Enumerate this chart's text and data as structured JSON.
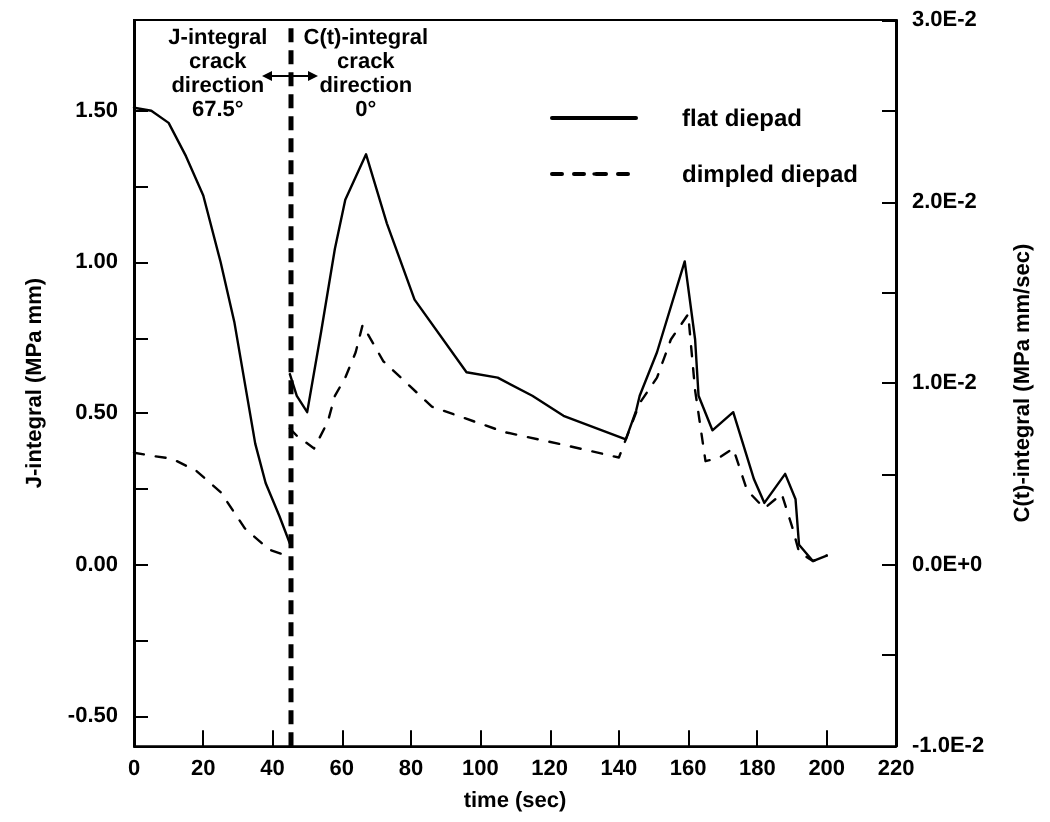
{
  "chart_data": {
    "type": "line",
    "xlabel": "time (sec)",
    "ylabel": "J-integral (MPa mm)",
    "y2label": "C(t)-integral (MPa mm/sec)",
    "annotations": [
      "J-integral\ncrack\ndirection\n67.5°",
      "C(t)-integral\ncrack\ndirection\n0°"
    ],
    "series": [
      {
        "name": "flat diepad",
        "color": "#000000",
        "line_style": "solid",
        "x": [
          0,
          5,
          10,
          15,
          20,
          25,
          29,
          32,
          35,
          38,
          42,
          45
        ],
        "values": [
          1.51,
          1.5,
          1.46,
          1.35,
          1.22,
          1.0,
          0.8,
          0.6,
          0.4,
          0.27,
          0.16,
          0.07
        ]
      },
      {
        "name": "dimpled diepad",
        "color": "#000000",
        "line_style": "dashed",
        "x": [
          0,
          5,
          11,
          18,
          25,
          32,
          39,
          44
        ],
        "values": [
          0.37,
          0.36,
          0.35,
          0.31,
          0.24,
          0.12,
          0.05,
          0.03
        ]
      },
      {
        "color": "#000000",
        "line_style": "solid",
        "axis": "y2",
        "x": [
          45,
          47,
          50,
          54,
          58,
          61,
          67,
          73,
          81,
          96,
          105,
          115,
          124,
          142,
          145,
          146,
          151,
          159,
          162,
          163,
          167,
          173,
          179,
          182,
          188,
          191,
          192,
          196,
          200
        ],
        "values": [
          0.0105,
          0.0093,
          0.0084,
          0.0128,
          0.0174,
          0.0201,
          0.0226,
          0.0188,
          0.0146,
          0.0106,
          0.0103,
          0.0093,
          0.0082,
          0.0069,
          0.0085,
          0.0093,
          0.0117,
          0.0167,
          0.0124,
          0.0093,
          0.0074,
          0.0084,
          0.0047,
          0.0034,
          0.005,
          0.0036,
          0.0011,
          0.0002,
          0.0005
        ]
      },
      {
        "color": "#000000",
        "line_style": "dashed",
        "axis": "y2",
        "x": [
          45,
          47,
          52,
          56,
          58,
          61,
          64,
          66,
          72,
          86,
          107,
          124,
          140,
          146,
          151,
          155,
          160,
          162,
          165,
          169,
          173,
          177,
          182,
          187,
          190,
          192,
          196,
          200
        ],
        "values": [
          0.0075,
          0.0071,
          0.0064,
          0.0079,
          0.0093,
          0.0103,
          0.0117,
          0.0132,
          0.0112,
          0.0087,
          0.0073,
          0.0066,
          0.0059,
          0.0089,
          0.0103,
          0.0124,
          0.0138,
          0.0096,
          0.0057,
          0.0059,
          0.0064,
          0.0041,
          0.0031,
          0.0039,
          0.0021,
          0.0007,
          0.0002,
          0.0005
        ]
      }
    ],
    "xlim": [
      0,
      220
    ],
    "xticks": [
      0,
      20,
      40,
      60,
      80,
      100,
      120,
      140,
      160,
      180,
      200,
      220
    ],
    "ylim": [
      -0.6,
      1.8
    ],
    "yticks": [
      {
        "value": -0.5,
        "label": "-0.50"
      },
      {
        "value": -0.25,
        "label": null
      },
      {
        "value": 0,
        "label": "0.00"
      },
      {
        "value": 0.25,
        "label": null
      },
      {
        "value": 0.5,
        "label": "0.50"
      },
      {
        "value": 0.75,
        "label": null
      },
      {
        "value": 1,
        "label": "1.00"
      },
      {
        "value": 1.25,
        "label": null
      },
      {
        "value": 1.5,
        "label": "1.50"
      }
    ],
    "y2lim": [
      -0.01,
      0.03
    ],
    "y2ticks": [
      {
        "value": -0.01,
        "label": "-1.0E-2"
      },
      {
        "value": -0.005,
        "label": null
      },
      {
        "value": 0,
        "label": "0.0E+0"
      },
      {
        "value": 0.005,
        "label": null
      },
      {
        "value": 0.01,
        "label": "1.0E-2"
      },
      {
        "value": 0.015,
        "label": null
      },
      {
        "value": 0.02,
        "label": "2.0E-2"
      },
      {
        "value": 0.025,
        "label": null
      },
      {
        "value": 0.03,
        "label": "3.0E-2"
      }
    ],
    "ref_lines": [
      {
        "axis": "x",
        "value": 45,
        "line_style": "dashed",
        "color": "#000000"
      }
    ],
    "grid": false,
    "legend": "top right",
    "marker": "none"
  }
}
